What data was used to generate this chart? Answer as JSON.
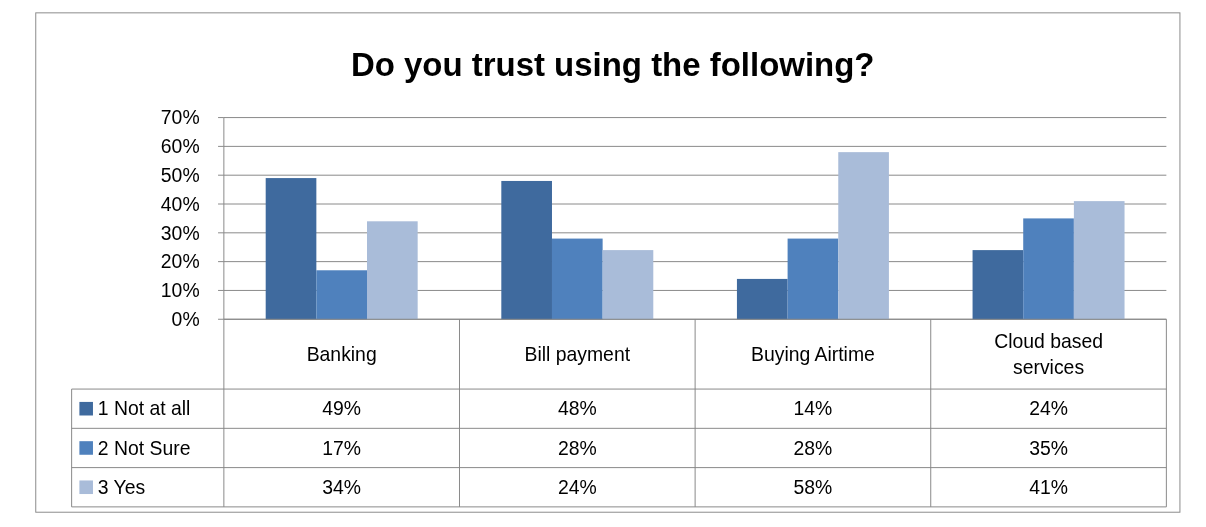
{
  "chart_data": {
    "type": "bar",
    "title": "Do you trust using the following?",
    "categories": [
      "Banking",
      "Bill payment",
      "Buying Airtime",
      "Cloud based services"
    ],
    "series": [
      {
        "name": "1 Not at all",
        "color": "#3f6a9e",
        "values": [
          49,
          48,
          14,
          24
        ],
        "value_labels": [
          "49%",
          "48%",
          "14%",
          "24%"
        ]
      },
      {
        "name": "2 Not Sure",
        "color": "#4f81bd",
        "values": [
          17,
          28,
          28,
          35
        ],
        "value_labels": [
          "17%",
          "28%",
          "28%",
          "35%"
        ]
      },
      {
        "name": "3 Yes",
        "color": "#a9bcd9",
        "values": [
          34,
          24,
          58,
          41
        ],
        "value_labels": [
          "34%",
          "24%",
          "58%",
          "41%"
        ]
      }
    ],
    "ylim": [
      0,
      70
    ],
    "yticks": [
      {
        "value": 0,
        "label": "0%"
      },
      {
        "value": 10,
        "label": "10%"
      },
      {
        "value": 20,
        "label": "20%"
      },
      {
        "value": 30,
        "label": "30%"
      },
      {
        "value": 40,
        "label": "40%"
      },
      {
        "value": 50,
        "label": "50%"
      },
      {
        "value": 60,
        "label": "60%"
      },
      {
        "value": 70,
        "label": "70%"
      }
    ],
    "grid": "y",
    "legend": "bottom left"
  }
}
